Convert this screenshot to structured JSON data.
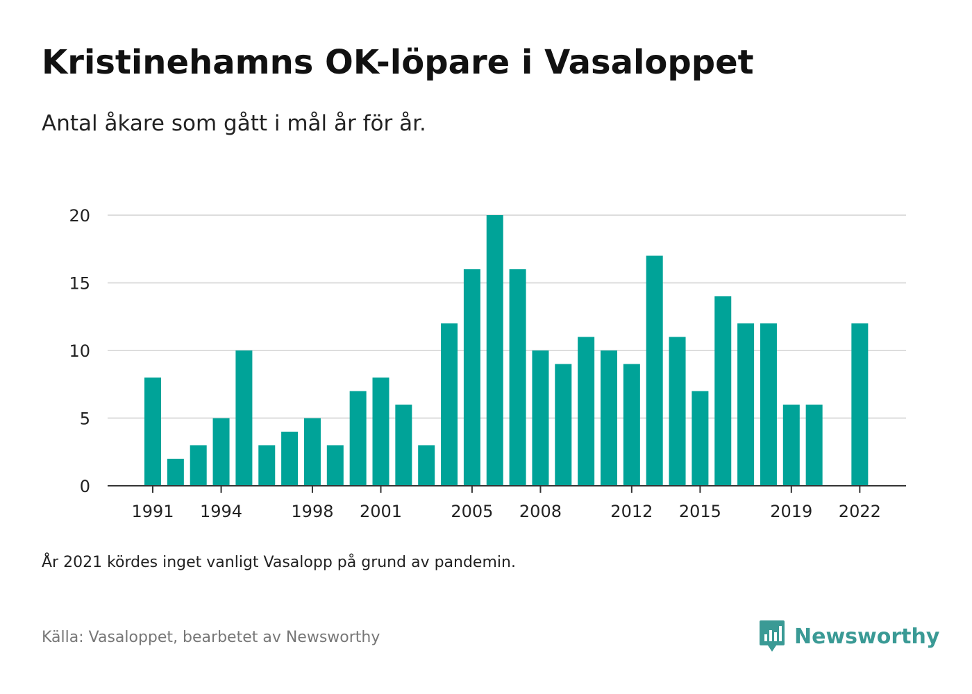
{
  "header": {
    "title": "Kristinehamns OK-löpare i Vasaloppet",
    "subtitle": "Antal åkare som gått i mål år för år."
  },
  "footer": {
    "note": "År 2021 kördes inget vanligt Vasalopp på grund av pandemin.",
    "source": "Källa: Vasaloppet, bearbetet av Newsworthy",
    "brand_name": "Newsworthy",
    "brand_color": "#3a9a95"
  },
  "chart_data": {
    "type": "bar",
    "title": "Kristinehamns OK-löpare i Vasaloppet",
    "subtitle": "Antal åkare som gått i mål år för år.",
    "xlabel": "",
    "ylabel": "",
    "bar_color": "#00a398",
    "grid": true,
    "legend": "none",
    "ylim": [
      0,
      20
    ],
    "yticks": [
      0,
      5,
      10,
      15,
      20
    ],
    "xticks": [
      1991,
      1994,
      1998,
      2001,
      2005,
      2008,
      2012,
      2015,
      2019,
      2022
    ],
    "xlim": [
      1990,
      2023
    ],
    "categories": [
      1991,
      1992,
      1993,
      1994,
      1995,
      1996,
      1997,
      1998,
      1999,
      2000,
      2001,
      2002,
      2003,
      2004,
      2005,
      2006,
      2007,
      2008,
      2009,
      2010,
      2011,
      2012,
      2013,
      2014,
      2015,
      2016,
      2017,
      2018,
      2019,
      2020,
      2022
    ],
    "values": [
      8,
      2,
      3,
      5,
      10,
      3,
      4,
      5,
      3,
      7,
      8,
      6,
      3,
      12,
      16,
      20,
      16,
      10,
      9,
      11,
      10,
      9,
      17,
      11,
      7,
      14,
      12,
      12,
      6,
      6,
      12
    ]
  }
}
